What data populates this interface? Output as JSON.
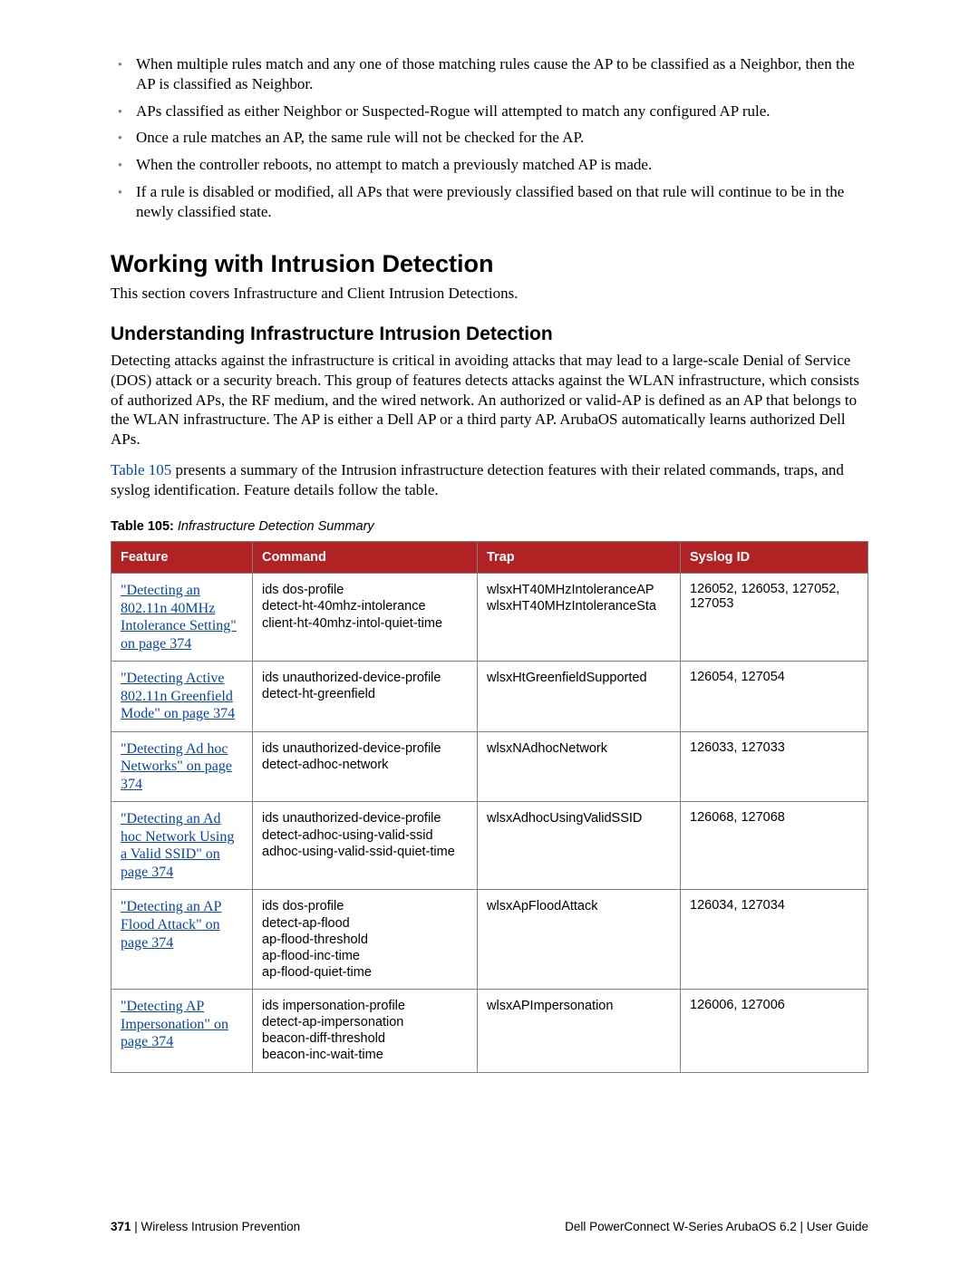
{
  "bullets": [
    "When multiple rules match and any one of those matching rules cause the AP to be classified as a Neighbor, then the AP is classified as Neighbor.",
    "APs classified as either Neighbor or Suspected-Rogue will attempted to match any configured AP rule.",
    "Once a rule matches an AP, the same rule will not be checked for the AP.",
    "When the controller reboots, no attempt to match a previously matched AP is made.",
    "If a rule is disabled or modified, all APs that were previously classified based on that rule will continue to be in the newly classified state."
  ],
  "h1": "Working with Intrusion Detection",
  "p_after_h1": "This section covers Infrastructure and Client Intrusion Detections.",
  "h2": "Understanding Infrastructure Intrusion Detection",
  "p_understanding": "Detecting attacks against the infrastructure is critical in avoiding attacks that may lead to a large-scale Denial of Service (DOS) attack or a security breach. This group of features detects attacks against the WLAN infrastructure, which consists of authorized APs, the RF medium, and the wired network. An authorized or valid-AP is defined as an AP that belongs to the WLAN infrastructure. The AP is either a  Dell AP or a third party AP. ArubaOS automatically learns authorized Dell APs.",
  "p_table_intro_link": "Table 105",
  "p_table_intro_rest": " presents a summary of the Intrusion infrastructure detection features with their related commands, traps, and syslog identification. Feature details follow the table.",
  "table_caption_bold": "Table 105:",
  "table_caption_italic": " Infrastructure Detection Summary",
  "table": {
    "headers": [
      "Feature",
      "Command",
      "Trap",
      "Syslog ID"
    ],
    "rows": [
      {
        "feature": "\"Detecting an 802.11n 40MHz Intolerance Setting\" on page 374",
        "commands": [
          "ids dos-profile",
          "detect-ht-40mhz-intolerance",
          "client-ht-40mhz-intol-quiet-time"
        ],
        "traps": [
          "wlsxHT40MHzIntoleranceAP",
          "wlsxHT40MHzIntoleranceSta"
        ],
        "syslog": "126052, 126053, 127052, 127053"
      },
      {
        "feature": "\"Detecting Active 802.11n Greenfield Mode\" on page 374",
        "commands": [
          "ids unauthorized-device-profile",
          "detect-ht-greenfield"
        ],
        "traps": [
          "wlsxHtGreenfieldSupported"
        ],
        "syslog": "126054, 127054"
      },
      {
        "feature": "\"Detecting Ad hoc Networks\" on page 374",
        "commands": [
          "ids unauthorized-device-profile",
          "detect-adhoc-network"
        ],
        "traps": [
          "wlsxNAdhocNetwork"
        ],
        "syslog": "126033, 127033"
      },
      {
        "feature": "\"Detecting an Ad hoc Network Using a Valid SSID\" on page 374",
        "commands": [
          "ids unauthorized-device-profile",
          "detect-adhoc-using-valid-ssid",
          "adhoc-using-valid-ssid-quiet-time"
        ],
        "traps": [
          "wlsxAdhocUsingValidSSID"
        ],
        "syslog": "126068, 127068"
      },
      {
        "feature": "\"Detecting an AP Flood Attack\" on page 374",
        "commands": [
          "ids dos-profile",
          "detect-ap-flood",
          "ap-flood-threshold",
          "ap-flood-inc-time",
          "ap-flood-quiet-time"
        ],
        "traps": [
          "wlsxApFloodAttack"
        ],
        "syslog": "126034, 127034"
      },
      {
        "feature": "\"Detecting AP Impersonation\" on page 374",
        "commands": [
          "ids impersonation-profile",
          "detect-ap-impersonation",
          "beacon-diff-threshold",
          "beacon-inc-wait-time"
        ],
        "traps": [
          "wlsxAPImpersonation"
        ],
        "syslog": "126006, 127006"
      }
    ]
  },
  "footer": {
    "page_number": "371",
    "separator": " | ",
    "left_text": "Wireless Intrusion Prevention",
    "right_text": "Dell PowerConnect W-Series ArubaOS 6.2  |  User Guide"
  }
}
